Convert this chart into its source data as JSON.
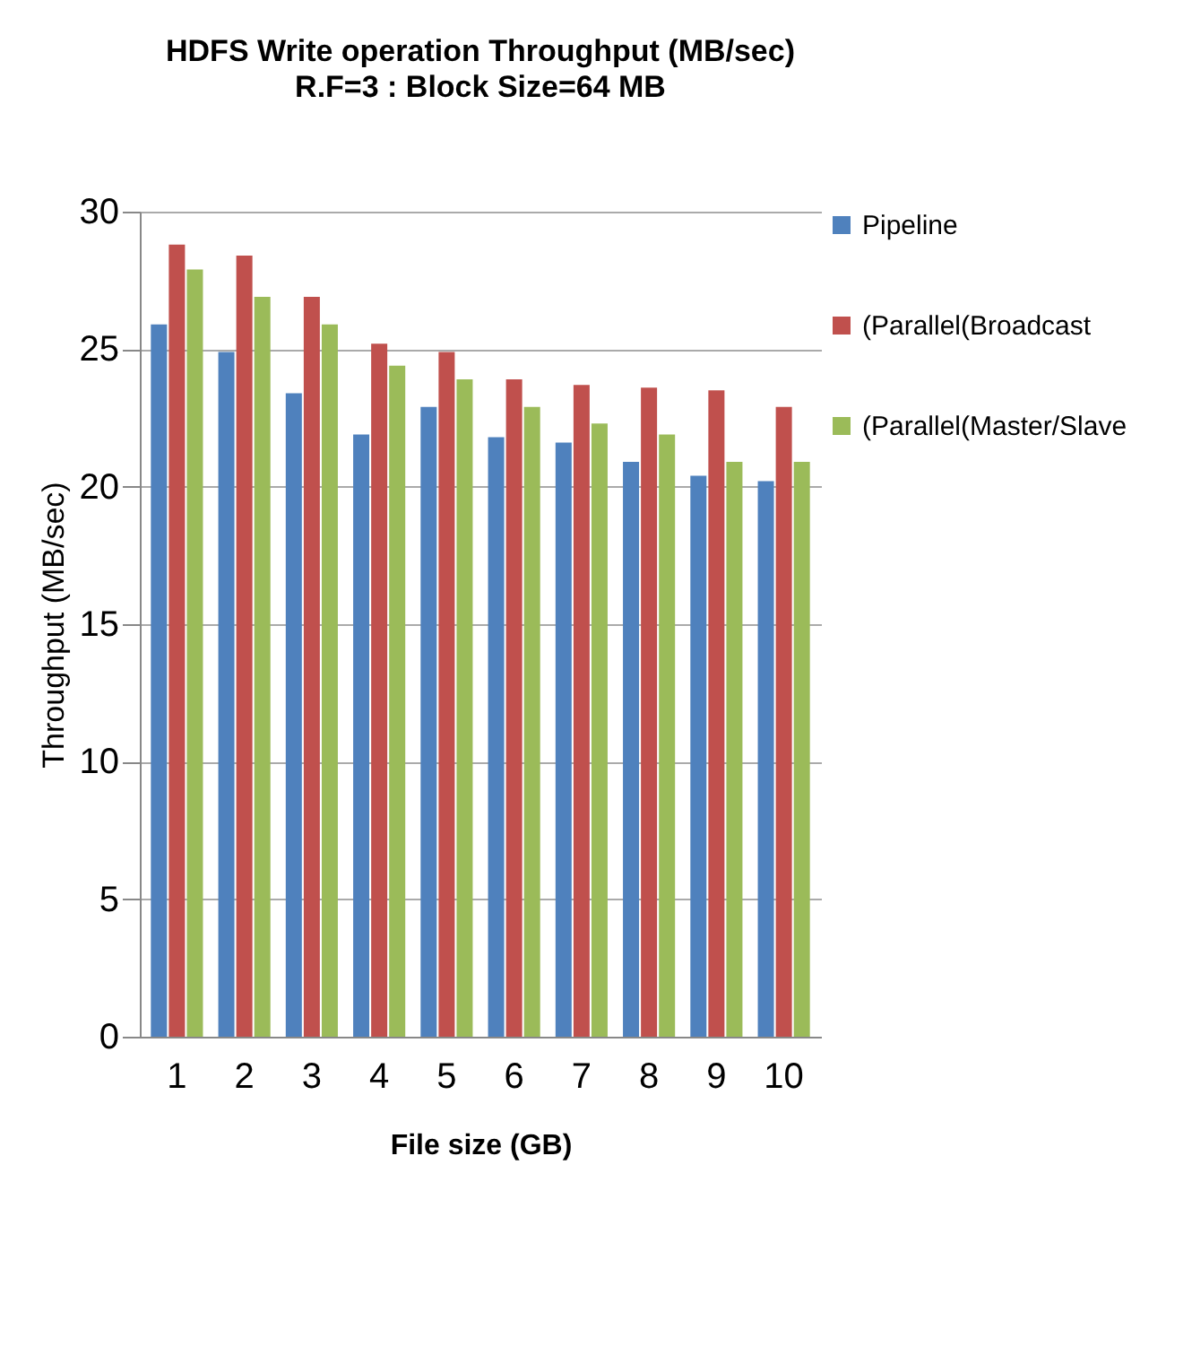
{
  "chart_data": {
    "type": "bar",
    "title": "HDFS  Write  operation Throughput  (MB/sec)",
    "subtitle": "R.F=3 : Block Size=64 MB",
    "xlabel": "File size (GB)",
    "ylabel": "Throughput  (MB/sec)",
    "categories": [
      "1",
      "2",
      "3",
      "4",
      "5",
      "6",
      "7",
      "8",
      "9",
      "10"
    ],
    "series": [
      {
        "name": "Pipeline",
        "color": "#4f81bd",
        "values": [
          25.9,
          24.9,
          23.4,
          21.9,
          22.9,
          21.8,
          21.6,
          20.9,
          20.4,
          20.2
        ]
      },
      {
        "name": "(Parallel(Broadcast",
        "color": "#c0504d",
        "values": [
          28.8,
          28.4,
          26.9,
          25.2,
          24.9,
          23.9,
          23.7,
          23.6,
          23.5,
          22.9
        ]
      },
      {
        "name": "(Parallel(Master/Slave",
        "color": "#9bbb59",
        "values": [
          27.9,
          26.9,
          25.9,
          24.4,
          23.9,
          22.9,
          22.3,
          21.9,
          20.9,
          20.9
        ]
      }
    ],
    "ylim": [
      0,
      30
    ],
    "yticks": [
      0,
      5,
      10,
      15,
      20,
      25,
      30
    ],
    "grid": "y",
    "legend": "right"
  }
}
